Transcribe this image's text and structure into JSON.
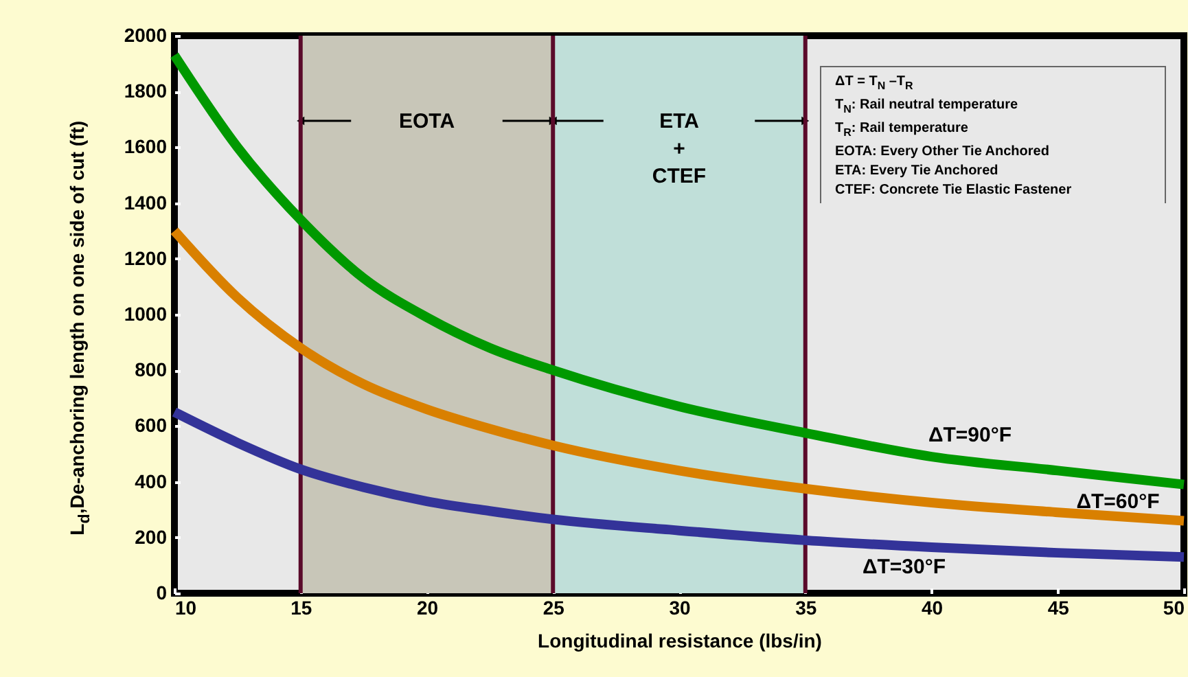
{
  "chart_data": {
    "type": "line",
    "xlabel": "Longitudinal resistance (lbs/in)",
    "ylabel": "L$_{d}$,De-anchoring length on one side of cut (ft)",
    "x": [
      10,
      12.5,
      15,
      17.5,
      20,
      22.5,
      25,
      30,
      35,
      40,
      45,
      50
    ],
    "series": [
      {
        "name": "ΔT=90°F",
        "color": "#009900",
        "values": [
          1930,
          1600,
          1340,
          1130,
          990,
          880,
          800,
          670,
          575,
          490,
          440,
          390
        ]
      },
      {
        "name": "ΔT=60°F",
        "color": "#d98000",
        "values": [
          1300,
          1060,
          880,
          750,
          660,
          590,
          530,
          440,
          375,
          325,
          290,
          260
        ]
      },
      {
        "name": "ΔT=30°F",
        "color": "#333399",
        "values": [
          650,
          540,
          445,
          380,
          330,
          295,
          265,
          225,
          190,
          165,
          145,
          130
        ]
      }
    ],
    "xlim": [
      10,
      50
    ],
    "ylim": [
      0,
      2000
    ],
    "xticks": [
      10,
      15,
      20,
      25,
      30,
      35,
      40,
      45,
      50
    ],
    "yticks": [
      0,
      200,
      400,
      600,
      800,
      1000,
      1200,
      1400,
      1600,
      1800,
      2000
    ],
    "bands": [
      {
        "axis": "x",
        "from": 15,
        "to": 25,
        "label": "EOTA",
        "color": "#c8c6b8"
      },
      {
        "axis": "x",
        "from": 25,
        "to": 35,
        "label": "ETA\n+\nCTEF",
        "color": "#c0dfd9"
      }
    ],
    "ref_lines": [
      {
        "axis": "x",
        "value": 15,
        "color": "#5a0a2a"
      },
      {
        "axis": "x",
        "value": 25,
        "color": "#5a0a2a"
      },
      {
        "axis": "x",
        "value": 35,
        "color": "#5a0a2a"
      }
    ],
    "annotations": [
      "ΔT = T$_{N}$ –T$_{R}$",
      "T$_{N}$: Rail neutral temperature",
      "T$_{R}$: Rail temperature",
      "EOTA: Every Other Tie Anchored",
      "ETA: Every Tie Anchored",
      "CTEF: Concrete Tie Elastic Fastener"
    ]
  }
}
